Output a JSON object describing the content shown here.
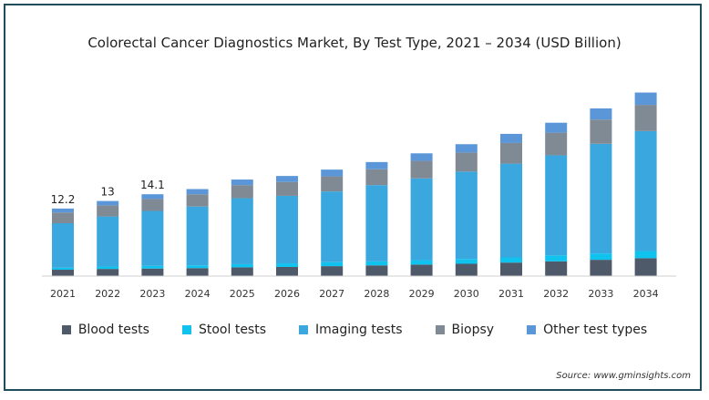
{
  "chart_data": {
    "type": "bar",
    "stacked": true,
    "title": "Colorectal Cancer Diagnostics Market, By Test Type, 2021 – 2034 (USD Billion)",
    "categories": [
      "2021",
      "2022",
      "2023",
      "2024",
      "2025",
      "2026",
      "2027",
      "2028",
      "2029",
      "2030",
      "2031",
      "2032",
      "2033",
      "2034"
    ],
    "series": [
      {
        "name": "Blood tests",
        "color": "#4e5969",
        "values": [
          0.8,
          0.9,
          0.95,
          1.0,
          1.1,
          1.15,
          1.25,
          1.35,
          1.45,
          1.55,
          1.7,
          1.85,
          2.05,
          2.25
        ]
      },
      {
        "name": "Stool tests",
        "color": "#10c3ef",
        "values": [
          0.25,
          0.3,
          0.35,
          0.35,
          0.4,
          0.45,
          0.5,
          0.5,
          0.55,
          0.6,
          0.65,
          0.75,
          0.8,
          0.9
        ]
      },
      {
        "name": "Imaging tests",
        "color": "#3aa7de",
        "values": [
          5.6,
          6.3,
          6.9,
          7.4,
          8.3,
          8.5,
          8.9,
          9.6,
          10.3,
          11.0,
          11.8,
          12.6,
          13.8,
          15.1
        ]
      },
      {
        "name": "Biopsy",
        "color": "#7f8a95",
        "values": [
          1.35,
          1.4,
          1.5,
          1.55,
          1.65,
          1.75,
          1.9,
          2.0,
          2.2,
          2.4,
          2.6,
          2.85,
          3.05,
          3.3
        ]
      },
      {
        "name": "Other test types",
        "color": "#5b97d8",
        "values": [
          0.5,
          0.55,
          0.6,
          0.65,
          0.7,
          0.75,
          0.85,
          0.9,
          0.95,
          1.05,
          1.15,
          1.25,
          1.4,
          1.55
        ]
      }
    ],
    "data_labels": [
      "12.2",
      "13",
      "14.1"
    ],
    "ylim": [
      0,
      24
    ],
    "grid": false,
    "legend_position": "bottom"
  },
  "source": "Source: www.gminsights.com"
}
